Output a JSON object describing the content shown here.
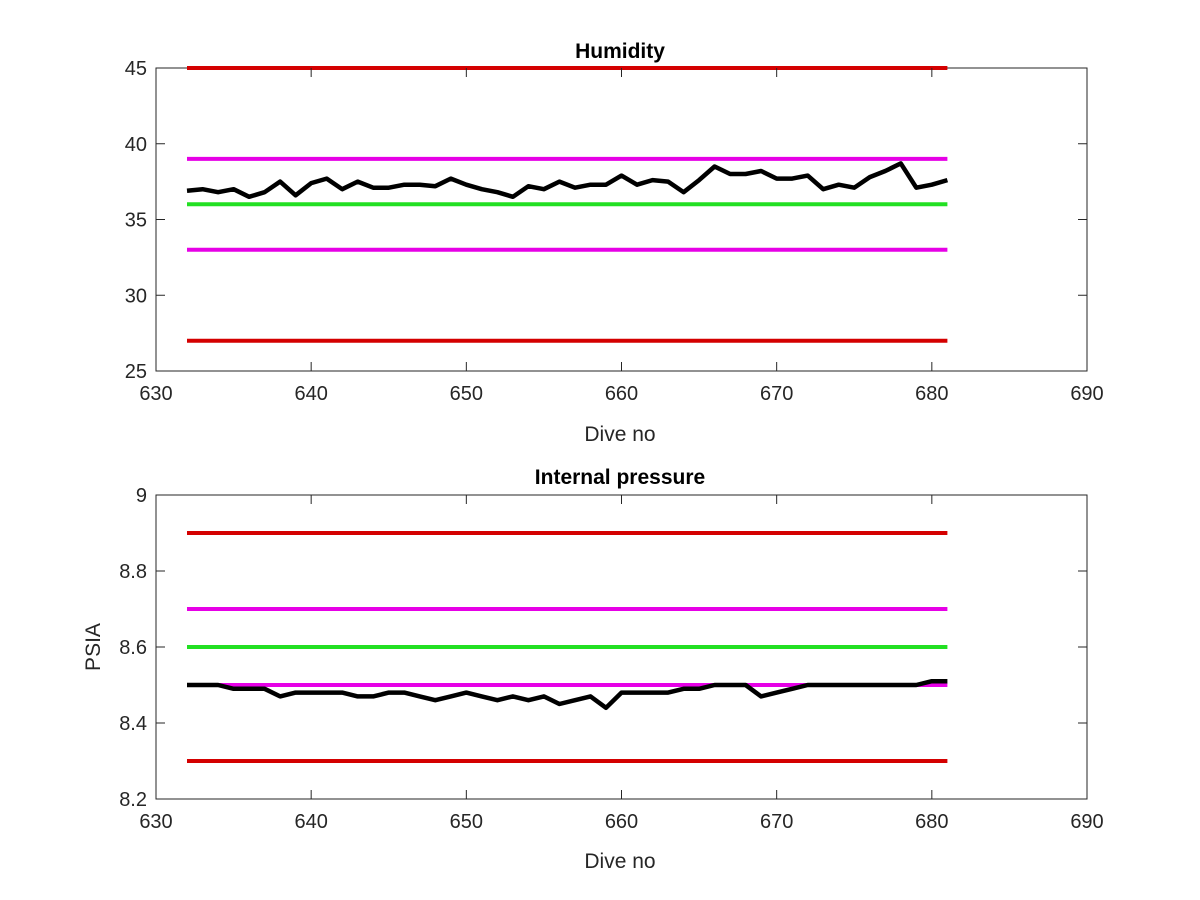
{
  "chart_data": [
    {
      "type": "line",
      "title": "Humidity",
      "xlabel": "Dive no",
      "ylabel": "",
      "xlim": [
        630,
        690
      ],
      "ylim": [
        25,
        45
      ],
      "xticks": [
        630,
        640,
        650,
        660,
        670,
        680,
        690
      ],
      "yticks": [
        25,
        30,
        35,
        40,
        45
      ],
      "xtick_labels": [
        "630",
        "640",
        "650",
        "660",
        "670",
        "680",
        "690"
      ],
      "ytick_labels": [
        "25",
        "30",
        "35",
        "40",
        "45"
      ],
      "grid": false,
      "legend": "none",
      "x": [
        632,
        633,
        634,
        635,
        636,
        637,
        638,
        639,
        640,
        641,
        642,
        643,
        644,
        645,
        646,
        647,
        648,
        649,
        650,
        651,
        652,
        653,
        654,
        655,
        656,
        657,
        658,
        659,
        660,
        661,
        662,
        663,
        664,
        665,
        666,
        667,
        668,
        669,
        670,
        671,
        672,
        673,
        674,
        675,
        676,
        677,
        678,
        679,
        680,
        681
      ],
      "series": [
        {
          "role": "data",
          "color": "#000000",
          "values": [
            36.9,
            37.0,
            36.8,
            37.0,
            36.5,
            36.8,
            37.5,
            36.6,
            37.4,
            37.7,
            37.0,
            37.5,
            37.1,
            37.1,
            37.3,
            37.3,
            37.2,
            37.7,
            37.3,
            37.0,
            36.8,
            36.5,
            37.2,
            37.0,
            37.5,
            37.1,
            37.3,
            37.3,
            37.9,
            37.3,
            37.6,
            37.5,
            36.8,
            37.6,
            38.5,
            38.0,
            38.0,
            38.2,
            37.7,
            37.7,
            37.9,
            37.0,
            37.3,
            37.1,
            37.8,
            38.2,
            38.7,
            37.1,
            37.3,
            37.6
          ]
        },
        {
          "role": "limit",
          "color": "#d40000",
          "x": [
            632,
            681
          ],
          "values": [
            45,
            45
          ]
        },
        {
          "role": "limit",
          "color": "#e600e6",
          "x": [
            632,
            681
          ],
          "values": [
            39,
            39
          ]
        },
        {
          "role": "limit",
          "color": "#22e022",
          "x": [
            632,
            681
          ],
          "values": [
            36,
            36
          ]
        },
        {
          "role": "limit",
          "color": "#e600e6",
          "x": [
            632,
            681
          ],
          "values": [
            33,
            33
          ]
        },
        {
          "role": "limit",
          "color": "#d40000",
          "x": [
            632,
            681
          ],
          "values": [
            27,
            27
          ]
        }
      ]
    },
    {
      "type": "line",
      "title": "Internal pressure",
      "xlabel": "Dive no",
      "ylabel": "PSIA",
      "xlim": [
        630,
        690
      ],
      "ylim": [
        8.2,
        9
      ],
      "xticks": [
        630,
        640,
        650,
        660,
        670,
        680,
        690
      ],
      "yticks": [
        8.2,
        8.4,
        8.6,
        8.8,
        9
      ],
      "xtick_labels": [
        "630",
        "640",
        "650",
        "660",
        "670",
        "680",
        "690"
      ],
      "ytick_labels": [
        "8.2",
        "8.4",
        "8.6",
        "8.8",
        "9"
      ],
      "grid": false,
      "legend": "none",
      "x": [
        632,
        633,
        634,
        635,
        636,
        637,
        638,
        639,
        640,
        641,
        642,
        643,
        644,
        645,
        646,
        647,
        648,
        649,
        650,
        651,
        652,
        653,
        654,
        655,
        656,
        657,
        658,
        659,
        660,
        661,
        662,
        663,
        664,
        665,
        666,
        667,
        668,
        669,
        670,
        671,
        672,
        673,
        674,
        675,
        676,
        677,
        678,
        679,
        680,
        681
      ],
      "series": [
        {
          "role": "limit",
          "color": "#d40000",
          "x": [
            632,
            681
          ],
          "values": [
            8.9,
            8.9
          ]
        },
        {
          "role": "limit",
          "color": "#e600e6",
          "x": [
            632,
            681
          ],
          "values": [
            8.7,
            8.7
          ]
        },
        {
          "role": "limit",
          "color": "#22e022",
          "x": [
            632,
            681
          ],
          "values": [
            8.6,
            8.6
          ]
        },
        {
          "role": "limit",
          "color": "#e600e6",
          "x": [
            632,
            681
          ],
          "values": [
            8.5,
            8.5
          ]
        },
        {
          "role": "limit",
          "color": "#d40000",
          "x": [
            632,
            681
          ],
          "values": [
            8.3,
            8.3
          ]
        },
        {
          "role": "data",
          "color": "#000000",
          "values": [
            8.5,
            8.5,
            8.5,
            8.49,
            8.49,
            8.49,
            8.47,
            8.48,
            8.48,
            8.48,
            8.48,
            8.47,
            8.47,
            8.48,
            8.48,
            8.47,
            8.46,
            8.47,
            8.48,
            8.47,
            8.46,
            8.47,
            8.46,
            8.47,
            8.45,
            8.46,
            8.47,
            8.44,
            8.48,
            8.48,
            8.48,
            8.48,
            8.49,
            8.49,
            8.5,
            8.5,
            8.5,
            8.47,
            8.48,
            8.49,
            8.5,
            8.5,
            8.5,
            8.5,
            8.5,
            8.5,
            8.5,
            8.5,
            8.51,
            8.51
          ]
        }
      ]
    }
  ]
}
